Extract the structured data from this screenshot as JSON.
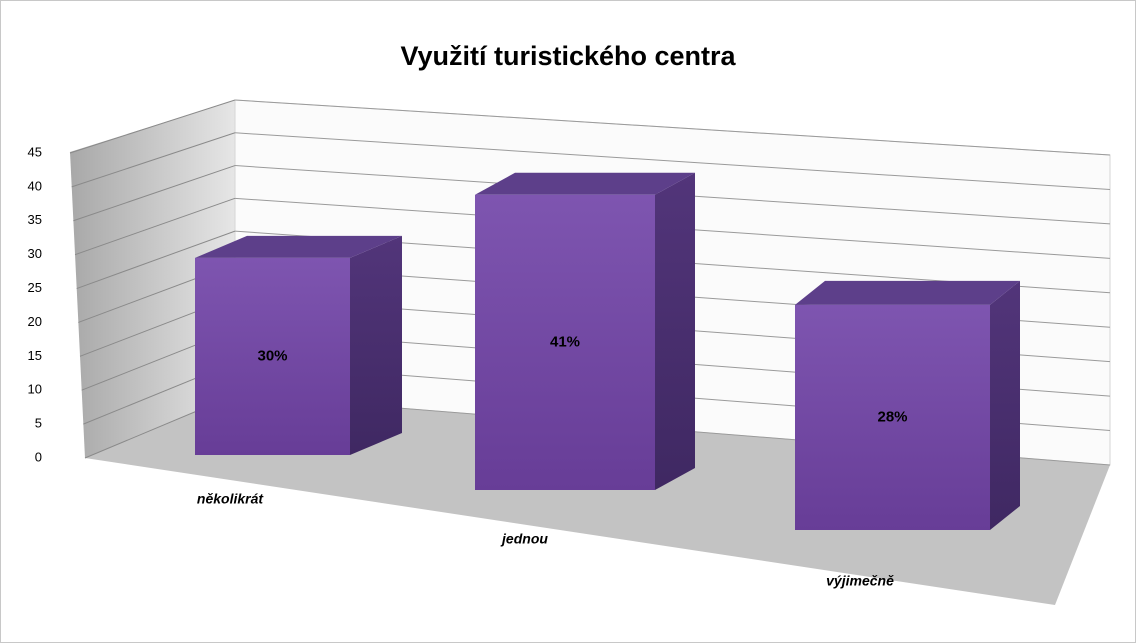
{
  "chart_data": {
    "type": "bar3d",
    "title": "Využití turistického centra",
    "categories": [
      "několikrát",
      "jednou",
      "výjimečně"
    ],
    "values": [
      30,
      41,
      28
    ],
    "value_labels": [
      "30%",
      "41%",
      "28%"
    ],
    "color": "#7851a9",
    "ylim": [
      0,
      45
    ],
    "yticks": [
      0,
      5,
      10,
      15,
      20,
      25,
      30,
      35,
      40,
      45
    ],
    "grid": true
  }
}
